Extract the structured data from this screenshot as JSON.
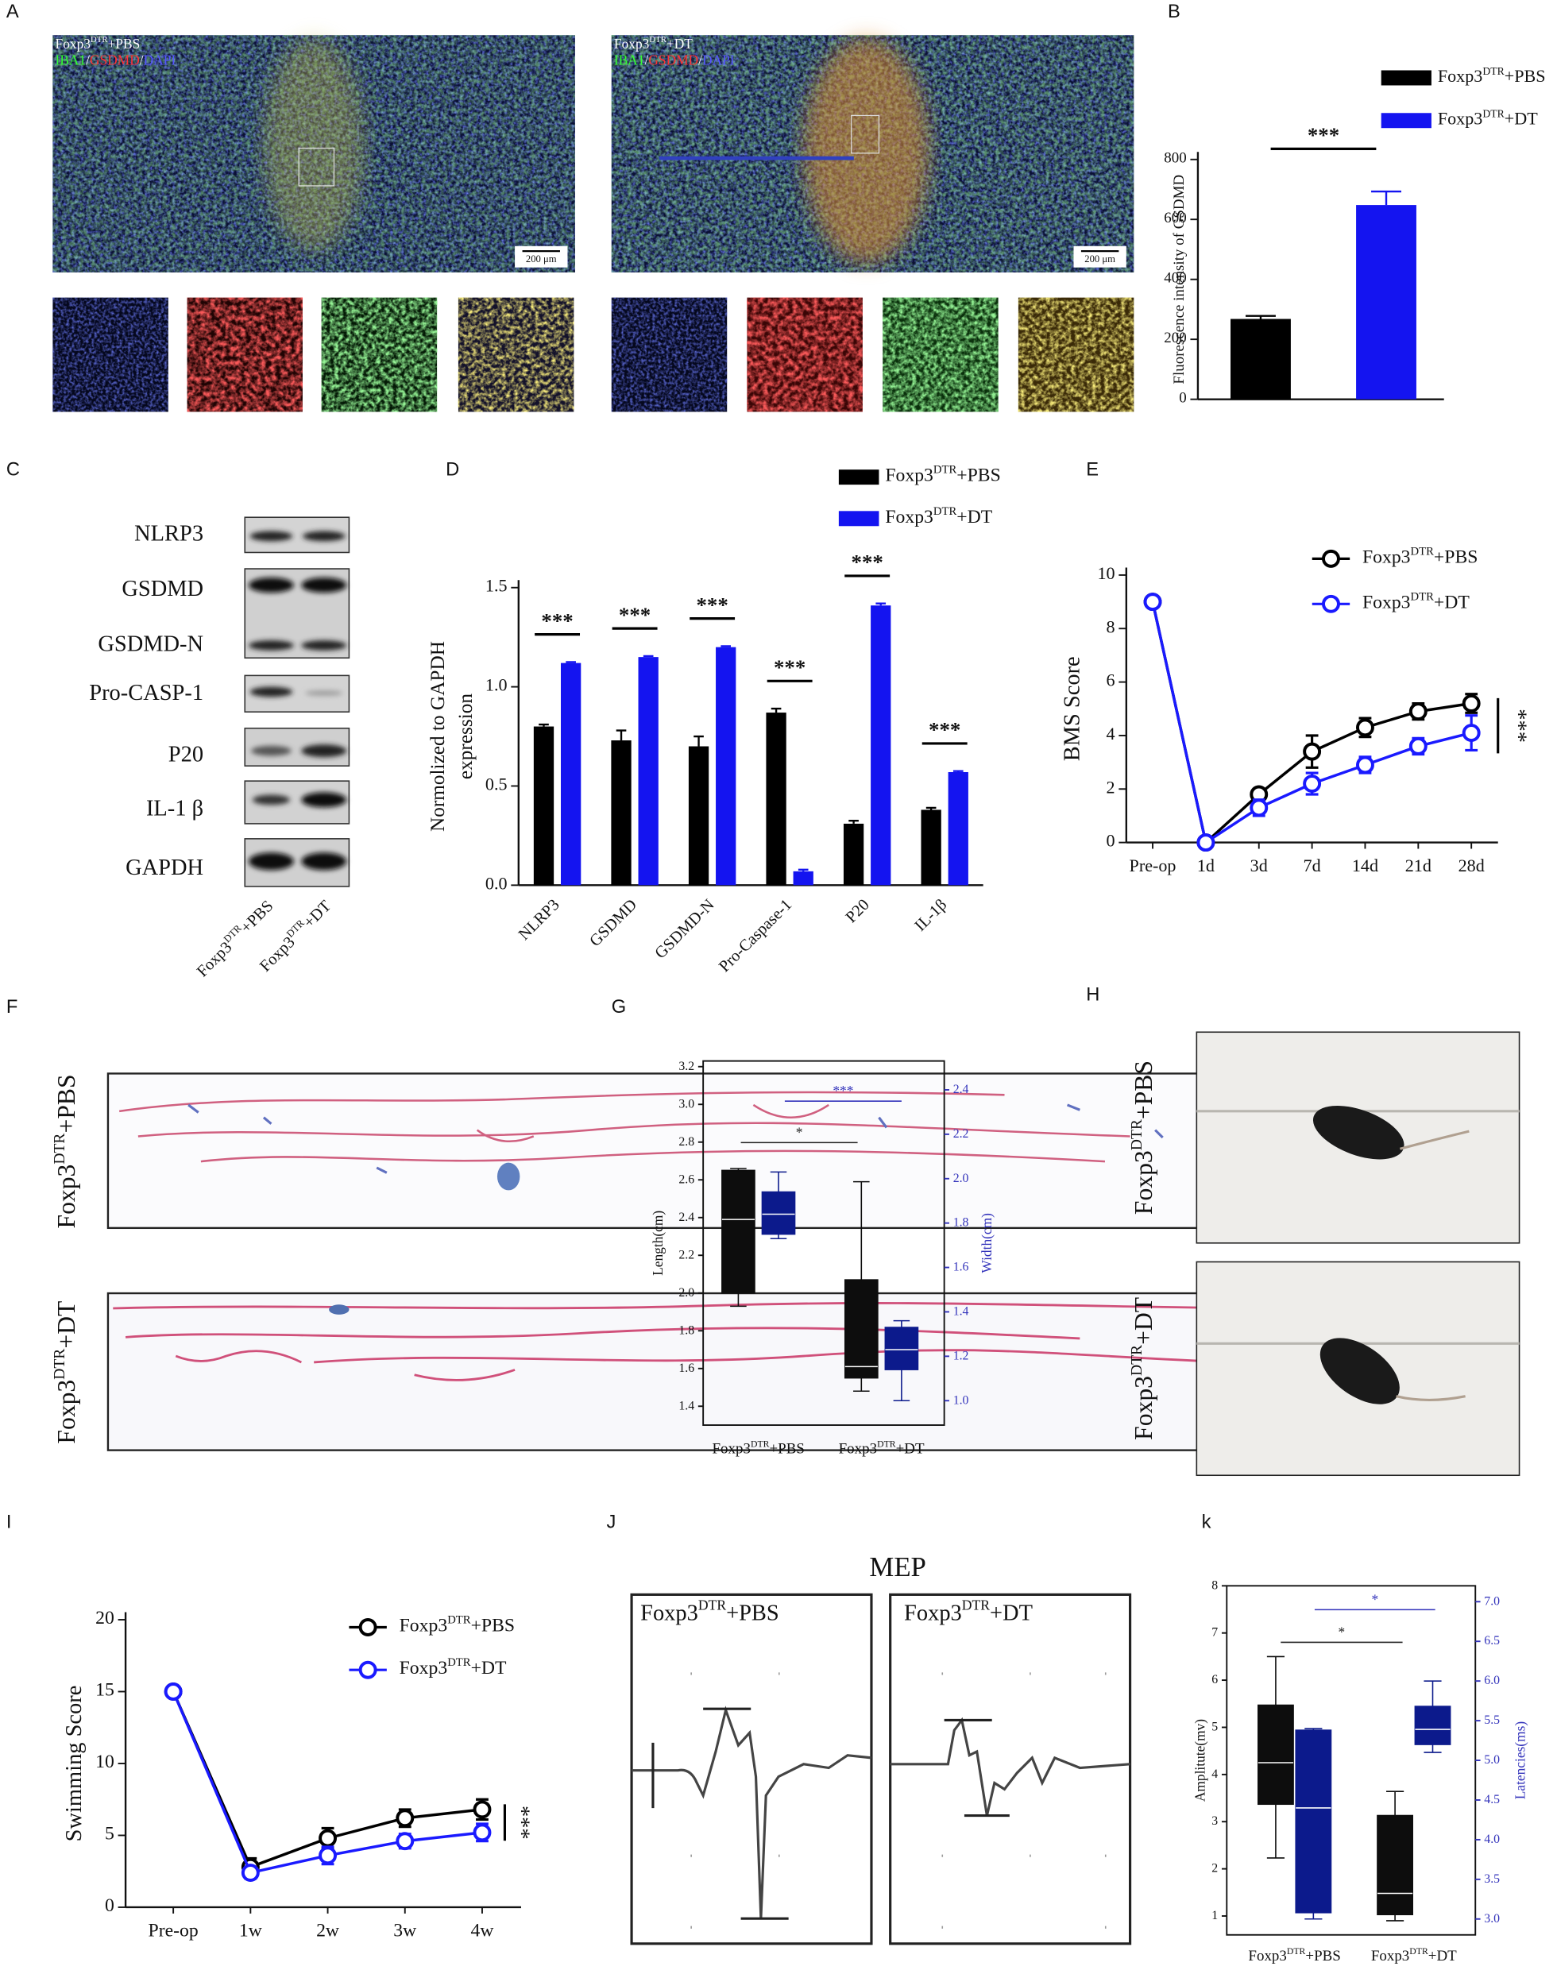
{
  "panel_a": {
    "panel": "A",
    "images": [
      {
        "title": "Foxp3DTR+PBS",
        "stain": "IBA1/GSDMD/DAPI",
        "scale_bar": "200 μm"
      },
      {
        "title": "Foxp3DTR+DT",
        "stain": "IBA1/GSDMD/DAPI",
        "scale_bar": "200 μm"
      }
    ]
  },
  "panel_c": {
    "panel": "C",
    "rows": [
      "NLRP3",
      "GSDMD",
      "GSDMD-N",
      "Pro-CASP-1",
      "P20",
      "IL-1 β",
      "GAPDH"
    ],
    "lanes": [
      "Foxp3DTR+PBS",
      "Foxp3DTR+DT"
    ]
  },
  "panel_f": {
    "panel": "F",
    "rows": [
      "Foxp3DTR+PBS",
      "Foxp3DTR+DT"
    ]
  },
  "panel_h": {
    "panel": "H",
    "rows": [
      "Foxp3DTR+PBS",
      "Foxp3DTR+DT"
    ]
  },
  "panel_j": {
    "panel": "J",
    "title": "MEP",
    "images": [
      "Foxp3DTR+PBS",
      "Foxp3DTR+DT"
    ]
  },
  "chart_data": [
    {
      "panel": "B",
      "type": "bar",
      "ylabel": [
        "Fluorescence intensity of GSDMD"
      ],
      "ylim": [
        0,
        800
      ],
      "yticks": [
        0,
        200,
        400,
        600,
        800
      ],
      "series": [
        {
          "name": "Foxp3DTR+PBS",
          "color": "#000000",
          "values": [
            268
          ],
          "errors": [
            10
          ]
        },
        {
          "name": "Foxp3DTR+DT",
          "color": "#1414f0",
          "values": [
            648
          ],
          "errors": [
            45
          ]
        }
      ],
      "significance": [
        "***"
      ]
    },
    {
      "panel": "D",
      "type": "bar",
      "ylabel": [
        "Normolized to GAPDH",
        "expression"
      ],
      "categories": [
        "NLRP3",
        "GSDMD",
        "GSDMD-N",
        "Pro-Caspase-1",
        "P20",
        "IL-1β"
      ],
      "ylim": [
        0,
        1.5
      ],
      "yticks": [
        {
          "value": 0,
          "label": "0.0"
        },
        0.5,
        {
          "value": 1,
          "label": "1.0"
        },
        1.5
      ],
      "series": [
        {
          "name": "Foxp3DTR+PBS",
          "color": "#000000",
          "values": [
            0.8,
            0.73,
            0.7,
            0.87,
            0.31,
            0.38
          ],
          "errors": [
            0.01,
            0.05,
            0.05,
            0.02,
            0.015,
            0.01
          ]
        },
        {
          "name": "Foxp3DTR+DT",
          "color": "#1414f0",
          "values": [
            1.12,
            1.15,
            1.2,
            0.07,
            1.41,
            0.57
          ],
          "errors": [
            0.005,
            0.005,
            0.005,
            0.008,
            0.01,
            0.005
          ]
        }
      ],
      "significance": [
        "***",
        "***",
        "***",
        "***",
        "***",
        "***"
      ]
    },
    {
      "panel": "E",
      "type": "line",
      "ylabel": [
        "BMS Score"
      ],
      "categories": [
        "Pre-op",
        "1d",
        "3d",
        "7d",
        "14d",
        "21d",
        "28d"
      ],
      "ylim": [
        0,
        10
      ],
      "yticks": [
        0,
        2,
        4,
        6,
        8,
        10
      ],
      "series": [
        {
          "name": "Foxp3DTR+PBS",
          "color": "#000000",
          "values": [
            9,
            0,
            1.8,
            3.4,
            4.3,
            4.9,
            5.2
          ],
          "errors": [
            0,
            0,
            0.2,
            0.6,
            0.35,
            0.3,
            0.35
          ]
        },
        {
          "name": "Foxp3DTR+DT",
          "color": "#1a1aff",
          "values": [
            9,
            0,
            1.3,
            2.2,
            2.9,
            3.6,
            4.1
          ],
          "errors": [
            0,
            0,
            0.3,
            0.4,
            0.3,
            0.3,
            0.65
          ]
        }
      ],
      "significance": [
        "***"
      ]
    },
    {
      "panel": "G",
      "type": "box",
      "ylabel": [
        "Length(cm)"
      ],
      "y2label": [
        "Width(cm)"
      ],
      "categories": [
        "Foxp3DTR+PBS",
        "Foxp3DTR+DT"
      ],
      "ylim": [
        1.3,
        3.23
      ],
      "yticks": [
        1.4,
        1.6,
        1.8,
        {
          "value": 2,
          "label": "2.0"
        },
        2.2,
        2.4,
        2.6,
        2.8,
        {
          "value": 3,
          "label": "3.0"
        },
        3.2
      ],
      "y2lim": [
        0.89,
        2.53
      ],
      "y2ticks": [
        {
          "value": 1,
          "label": "1.0"
        },
        1.2,
        1.4,
        1.6,
        1.8,
        {
          "value": 2,
          "label": "2.0"
        },
        2.2,
        2.4
      ],
      "series": [
        {
          "axis": "y",
          "color": "#0d0d0d",
          "min": [
            1.93,
            1.48
          ],
          "q1": [
            2.0,
            1.55
          ],
          "median": [
            2.39,
            1.61
          ],
          "q3": [
            2.65,
            2.07
          ],
          "max": [
            2.66,
            2.59
          ]
        },
        {
          "axis": "y2",
          "color": "#0c1a8c",
          "min": [
            1.73,
            1.0
          ],
          "q1": [
            1.75,
            1.14
          ],
          "median": [
            1.84,
            1.23
          ],
          "q3": [
            1.94,
            1.33
          ],
          "max": [
            2.03,
            1.36
          ]
        }
      ],
      "significance": [
        {
          "text": "*",
          "color": "#222222"
        },
        {
          "text": "***",
          "color": "#3333bb"
        }
      ]
    },
    {
      "panel": "I",
      "type": "line",
      "ylabel": [
        "Swimming Score"
      ],
      "categories": [
        "Pre-op",
        "1w",
        "2w",
        "3w",
        "4w"
      ],
      "ylim": [
        0,
        20
      ],
      "yticks": [
        0,
        5,
        10,
        15,
        20
      ],
      "series": [
        {
          "name": "Foxp3DTR+PBS",
          "color": "#000000",
          "values": [
            15,
            2.8,
            4.8,
            6.2,
            6.8
          ],
          "errors": [
            0,
            0.6,
            0.7,
            0.6,
            0.7
          ]
        },
        {
          "name": "Foxp3DTR+DT",
          "color": "#1a1aff",
          "values": [
            15,
            2.4,
            3.6,
            4.6,
            5.2
          ],
          "errors": [
            0,
            0.4,
            0.6,
            0.5,
            0.6
          ]
        }
      ],
      "significance": [
        "***"
      ]
    },
    {
      "panel": "k",
      "type": "box",
      "ylabel": [
        "Amplitute(mv)"
      ],
      "y2label": [
        "Latencies(ms)"
      ],
      "categories": [
        "Foxp3DTR+PBS",
        "Foxp3DTR+DT"
      ],
      "ylim": [
        0.6,
        8.0
      ],
      "yticks": [
        1,
        2,
        3,
        4,
        5,
        6,
        7,
        8
      ],
      "y2lim": [
        2.8,
        7.2
      ],
      "y2ticks": [
        {
          "value": 3,
          "label": "3.0"
        },
        3.5,
        {
          "value": 4,
          "label": "4.0"
        },
        4.5,
        {
          "value": 5,
          "label": "5.0"
        },
        5.5,
        {
          "value": 6,
          "label": "6.0"
        },
        6.5,
        {
          "value": 7,
          "label": "7.0"
        }
      ],
      "series": [
        {
          "axis": "y",
          "color": "#0d0d0d",
          "min": [
            2.23,
            0.9
          ],
          "q1": [
            3.37,
            1.03
          ],
          "median": [
            4.25,
            1.48
          ],
          "q3": [
            5.47,
            3.13
          ],
          "max": [
            6.5,
            3.64
          ]
        },
        {
          "axis": "y2",
          "color": "#0c1a8c",
          "min": [
            3.0,
            5.1
          ],
          "q1": [
            3.08,
            5.2
          ],
          "median": [
            4.4,
            5.39
          ],
          "q3": [
            5.38,
            5.68
          ],
          "max": [
            5.4,
            6.0
          ]
        }
      ],
      "significance": [
        {
          "text": "*",
          "color": "#222222"
        },
        {
          "text": "*",
          "color": "#3333bb"
        }
      ]
    }
  ]
}
